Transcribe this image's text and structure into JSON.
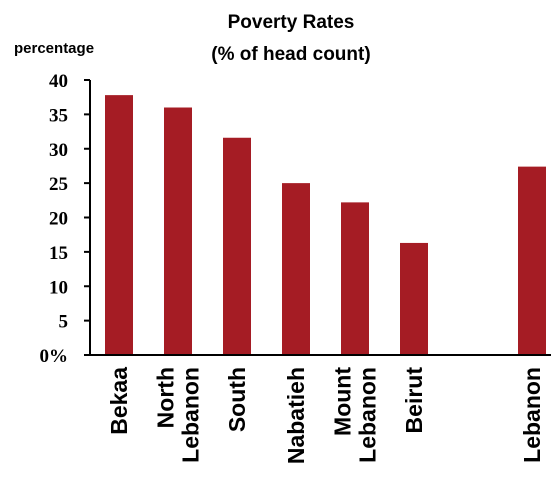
{
  "chart_data": {
    "type": "bar",
    "title_lines": [
      "Poverty Rates",
      "(% of head count)"
    ],
    "ylabel": "percentage",
    "xlabel": "",
    "ylim": [
      0,
      40
    ],
    "yticks": [
      {
        "value": 40,
        "label": "40"
      },
      {
        "value": 35,
        "label": "35"
      },
      {
        "value": 30,
        "label": "30"
      },
      {
        "value": 25,
        "label": "25"
      },
      {
        "value": 20,
        "label": "20"
      },
      {
        "value": 15,
        "label": "15"
      },
      {
        "value": 10,
        "label": "10"
      },
      {
        "value": 5,
        "label": "5"
      },
      {
        "value": 0,
        "label": "0%"
      }
    ],
    "categories": [
      {
        "lines": [
          "Bekaa"
        ]
      },
      {
        "lines": [
          "North",
          "Lebanon"
        ]
      },
      {
        "lines": [
          "South"
        ]
      },
      {
        "lines": [
          "Nabatieh"
        ]
      },
      {
        "lines": [
          "Mount",
          "Lebanon"
        ]
      },
      {
        "lines": [
          "Beirut"
        ]
      },
      {
        "lines": []
      },
      {
        "lines": [
          "Lebanon"
        ]
      }
    ],
    "values": [
      37.8,
      36.0,
      31.6,
      25.0,
      22.2,
      16.3,
      null,
      27.4
    ],
    "grid": false,
    "legend": "none",
    "colors": {
      "bar": "#a51c24",
      "axis": "#000000"
    }
  }
}
